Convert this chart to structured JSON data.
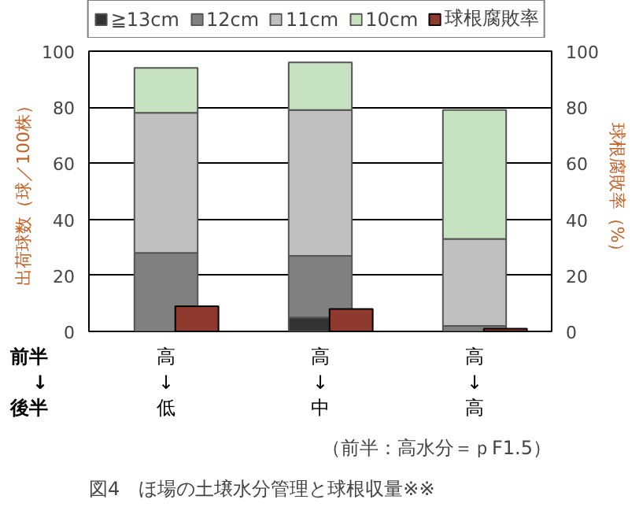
{
  "chart_data": {
    "type": "bar",
    "stacked": true,
    "title": "図4　ほ場の土壌水分管理と球根収量※※",
    "subtitle": "（前半：高水分＝ｐF1.5）",
    "ylabel": "出荷球数（球／100株）",
    "y2label": "球根腐敗率（%）",
    "categories": [
      "高\n↓\n低",
      "高\n↓\n中",
      "高\n↓\n高"
    ],
    "annotations": [
      "前半\n↓\n後半"
    ],
    "series": [
      {
        "name": "≧13cm",
        "color": "#333333",
        "values": [
          0,
          5,
          0
        ]
      },
      {
        "name": "12cm",
        "color": "#808080",
        "values": [
          28,
          22,
          2
        ]
      },
      {
        "name": "11cm",
        "color": "#c0c0c0",
        "values": [
          50,
          52,
          31
        ]
      },
      {
        "name": "10cm",
        "color": "#c6e2c0",
        "values": [
          16,
          17,
          46
        ]
      },
      {
        "name": "球根腐敗率",
        "color": "#8e3a2e",
        "values": [
          9,
          8,
          1
        ],
        "axis": "y2"
      }
    ],
    "ylim": [
      0,
      100
    ],
    "yticks": [
      0,
      20,
      40,
      60,
      80,
      100
    ],
    "y2lim": [
      0,
      100
    ],
    "y2ticks": [
      0,
      20,
      40,
      60,
      80,
      100
    ],
    "grid": "y",
    "legend": "top"
  }
}
